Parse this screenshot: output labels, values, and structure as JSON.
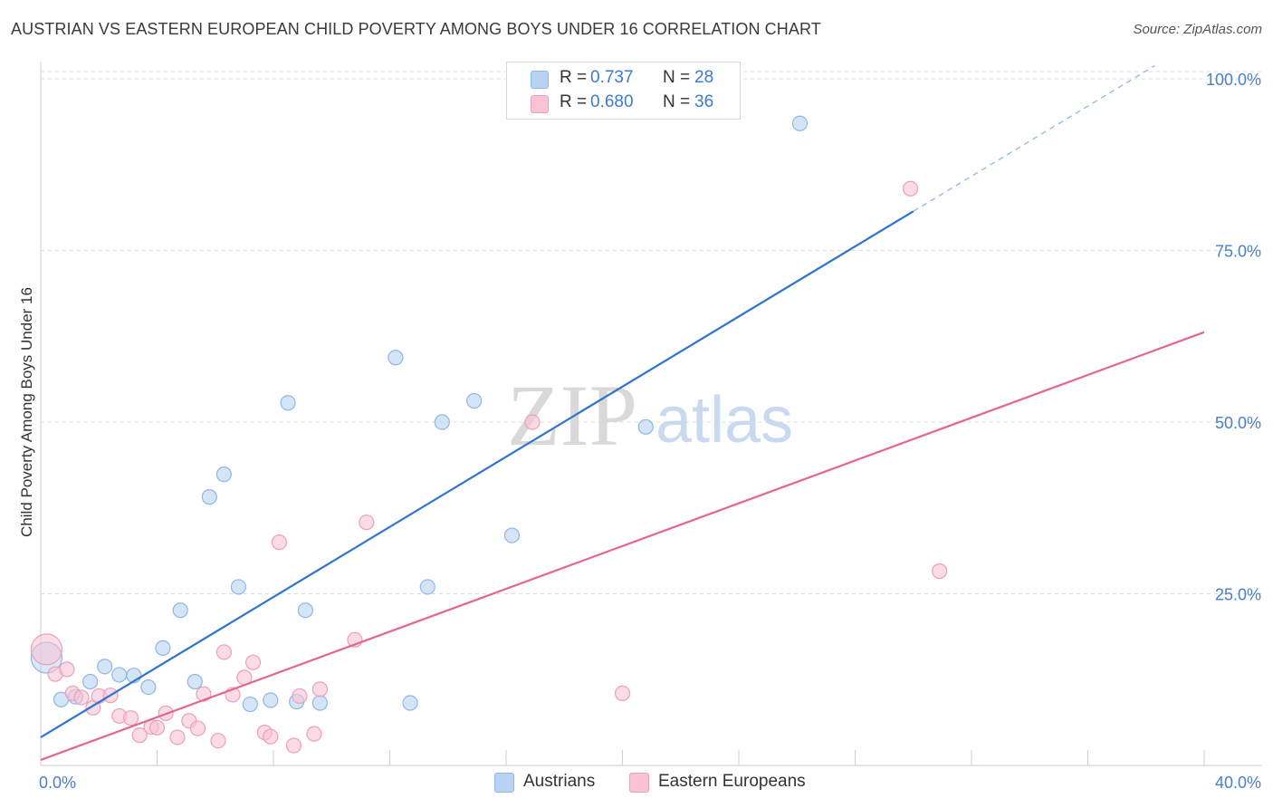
{
  "header": {
    "title": "AUSTRIAN VS EASTERN EUROPEAN CHILD POVERTY AMONG BOYS UNDER 16 CORRELATION CHART",
    "source": "Source: ZipAtlas.com"
  },
  "watermark": {
    "zip": "ZIP",
    "atlas": "atlas"
  },
  "legend": {
    "austrians": {
      "r_label": "R =",
      "r_value": "0.737",
      "n_label": "N =",
      "n_value": "28"
    },
    "eastern": {
      "r_label": "R =",
      "r_value": "0.680",
      "n_label": "N =",
      "n_value": "36"
    }
  },
  "bottom_legend": {
    "austrians": "Austrians",
    "eastern": "Eastern Europeans"
  },
  "colors": {
    "austrians_fill": "#b9d3f3",
    "austrians_stroke": "#8fb6e6",
    "austrians_line": "#2e74cf",
    "eastern_fill": "#f9c3d4",
    "eastern_stroke": "#ef9fb8",
    "eastern_line": "#e4668f",
    "grid": "#dcdcdc",
    "tick": "#4a7fc8"
  },
  "chart_data": {
    "type": "scatter",
    "title": "AUSTRIAN VS EASTERN EUROPEAN CHILD POVERTY AMONG BOYS UNDER 16 CORRELATION CHART",
    "xlabel": "",
    "ylabel": "Child Poverty Among Boys Under 16",
    "xlim": [
      0,
      40
    ],
    "ylim": [
      0,
      100
    ],
    "x_tick_labels": {
      "min": "0.0%",
      "max": "40.0%"
    },
    "y_ticks": [
      {
        "value": 25,
        "label": "25.0%"
      },
      {
        "value": 50,
        "label": "50.0%"
      },
      {
        "value": 75,
        "label": "75.0%"
      },
      {
        "value": 100,
        "label": "100.0%"
      }
    ],
    "grid": true,
    "legend_position": "top-center",
    "series": [
      {
        "name": "Austrians",
        "R": 0.737,
        "N": 28,
        "trend": {
          "x0": 0,
          "y0": 4.1,
          "x1": 30.0,
          "y1": 80.7,
          "dash_x_end": 38.3,
          "dash_y_end": 101.9
        },
        "points": [
          [
            0.2,
            15.7,
            "big"
          ],
          [
            0.7,
            9.6
          ],
          [
            1.2,
            10.0
          ],
          [
            1.7,
            12.2
          ],
          [
            2.2,
            14.4
          ],
          [
            2.7,
            13.2
          ],
          [
            3.2,
            13.1
          ],
          [
            3.7,
            11.4
          ],
          [
            4.2,
            17.1
          ],
          [
            4.8,
            22.6
          ],
          [
            5.3,
            12.2
          ],
          [
            5.8,
            39.1
          ],
          [
            6.3,
            42.4
          ],
          [
            6.8,
            26.0
          ],
          [
            7.2,
            8.9
          ],
          [
            7.9,
            9.5
          ],
          [
            8.5,
            52.8
          ],
          [
            8.8,
            9.3
          ],
          [
            9.1,
            22.6
          ],
          [
            9.6,
            9.1
          ],
          [
            12.2,
            59.4
          ],
          [
            12.7,
            9.1
          ],
          [
            13.3,
            26.0
          ],
          [
            13.8,
            50.0
          ],
          [
            14.9,
            53.1
          ],
          [
            16.2,
            33.5
          ],
          [
            20.8,
            49.3
          ],
          [
            26.1,
            93.5
          ]
        ]
      },
      {
        "name": "Eastern Europeans",
        "R": 0.68,
        "N": 36,
        "trend": {
          "x0": 0,
          "y0": 0.8,
          "x1": 40,
          "y1": 63.1
        },
        "points": [
          [
            0.2,
            16.9,
            "big"
          ],
          [
            0.5,
            13.3
          ],
          [
            0.9,
            14.0
          ],
          [
            1.1,
            10.5
          ],
          [
            1.4,
            9.9
          ],
          [
            1.8,
            8.4
          ],
          [
            2.0,
            10.1
          ],
          [
            2.4,
            10.2
          ],
          [
            2.7,
            7.2
          ],
          [
            3.1,
            6.9
          ],
          [
            3.4,
            4.4
          ],
          [
            3.8,
            5.6
          ],
          [
            4.0,
            5.5
          ],
          [
            4.3,
            7.6
          ],
          [
            4.7,
            4.1
          ],
          [
            5.1,
            6.5
          ],
          [
            5.4,
            5.4
          ],
          [
            5.6,
            10.4
          ],
          [
            6.1,
            3.6
          ],
          [
            6.3,
            16.5
          ],
          [
            6.6,
            10.3
          ],
          [
            7.0,
            12.8
          ],
          [
            7.3,
            15.0
          ],
          [
            7.7,
            4.8
          ],
          [
            7.9,
            4.2
          ],
          [
            8.2,
            32.5
          ],
          [
            8.7,
            2.9
          ],
          [
            8.9,
            10.1
          ],
          [
            9.4,
            4.6
          ],
          [
            9.6,
            11.1
          ],
          [
            10.8,
            18.3
          ],
          [
            11.2,
            35.4
          ],
          [
            16.9,
            50.0
          ],
          [
            20.0,
            10.5
          ],
          [
            29.9,
            84.0
          ],
          [
            30.9,
            28.3
          ]
        ]
      }
    ]
  }
}
